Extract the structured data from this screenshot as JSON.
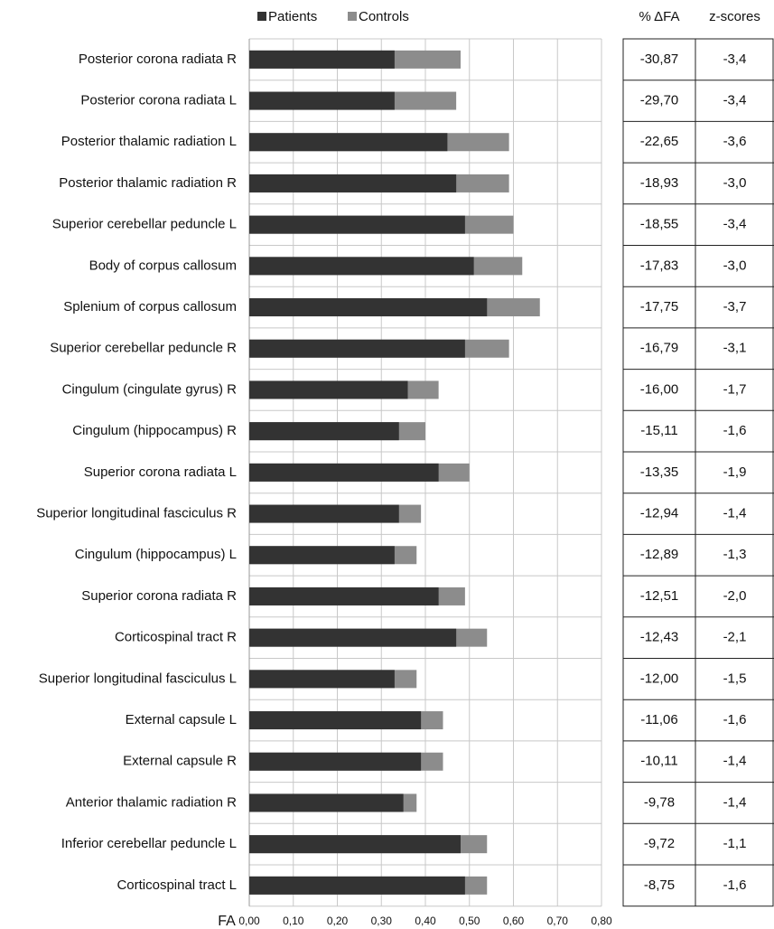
{
  "chart_data": {
    "type": "bar",
    "orientation": "horizontal",
    "overlap": true,
    "categories": [
      "Posterior corona radiata R",
      "Posterior corona radiata L",
      "Posterior thalamic radiation L",
      "Posterior thalamic radiation R",
      "Superior cerebellar peduncle L",
      "Body of corpus callosum",
      "Splenium of corpus callosum",
      "Superior cerebellar peduncle R",
      "Cingulum (cingulate gyrus) R",
      "Cingulum (hippocampus) R",
      "Superior corona radiata L",
      "Superior longitudinal fasciculus R",
      "Cingulum (hippocampus) L",
      "Superior corona radiata R",
      "Corticospinal tract R",
      "Superior longitudinal fasciculus L",
      "External capsule L",
      "External capsule R",
      "Anterior thalamic radiation R",
      "Inferior cerebellar peduncle L",
      "Corticospinal tract L"
    ],
    "series": [
      {
        "name": "Patients",
        "color": "#333333",
        "values": [
          0.33,
          0.33,
          0.45,
          0.47,
          0.49,
          0.51,
          0.54,
          0.49,
          0.36,
          0.34,
          0.43,
          0.34,
          0.33,
          0.43,
          0.47,
          0.33,
          0.39,
          0.39,
          0.35,
          0.48,
          0.49
        ]
      },
      {
        "name": "Controls",
        "color": "#8c8c8c",
        "values": [
          0.48,
          0.47,
          0.59,
          0.59,
          0.6,
          0.62,
          0.66,
          0.59,
          0.43,
          0.4,
          0.5,
          0.39,
          0.38,
          0.49,
          0.54,
          0.38,
          0.44,
          0.44,
          0.38,
          0.54,
          0.54
        ]
      }
    ],
    "xlabel": "FA",
    "xlim": [
      0,
      0.8
    ],
    "xticks": [
      {
        "value": 0,
        "label": "0,00"
      },
      {
        "value": 0.1,
        "label": "0,10"
      },
      {
        "value": 0.2,
        "label": "0,20"
      },
      {
        "value": 0.3,
        "label": "0,30"
      },
      {
        "value": 0.4,
        "label": "0,40"
      },
      {
        "value": 0.5,
        "label": "0,50"
      },
      {
        "value": 0.6,
        "label": "0,60"
      },
      {
        "value": 0.7,
        "label": "0,70"
      },
      {
        "value": 0.8,
        "label": "0,80"
      }
    ],
    "grid": true,
    "legend": "top"
  },
  "table": {
    "columns": [
      "% ΔFA",
      "z-scores"
    ],
    "rows": [
      [
        "-30,87",
        "-3,4"
      ],
      [
        "-29,70",
        "-3,4"
      ],
      [
        "-22,65",
        "-3,6"
      ],
      [
        "-18,93",
        "-3,0"
      ],
      [
        "-18,55",
        "-3,4"
      ],
      [
        "-17,83",
        "-3,0"
      ],
      [
        "-17,75",
        "-3,7"
      ],
      [
        "-16,79",
        "-3,1"
      ],
      [
        "-16,00",
        "-1,7"
      ],
      [
        "-15,11",
        "-1,6"
      ],
      [
        "-13,35",
        "-1,9"
      ],
      [
        "-12,94",
        "-1,4"
      ],
      [
        "-12,89",
        "-1,3"
      ],
      [
        "-12,51",
        "-2,0"
      ],
      [
        "-12,43",
        "-2,1"
      ],
      [
        "-12,00",
        "-1,5"
      ],
      [
        "-11,06",
        "-1,6"
      ],
      [
        "-10,11",
        "-1,4"
      ],
      [
        "-9,78",
        "-1,4"
      ],
      [
        "-9,72",
        "-1,1"
      ],
      [
        "-8,75",
        "-1,6"
      ]
    ]
  }
}
